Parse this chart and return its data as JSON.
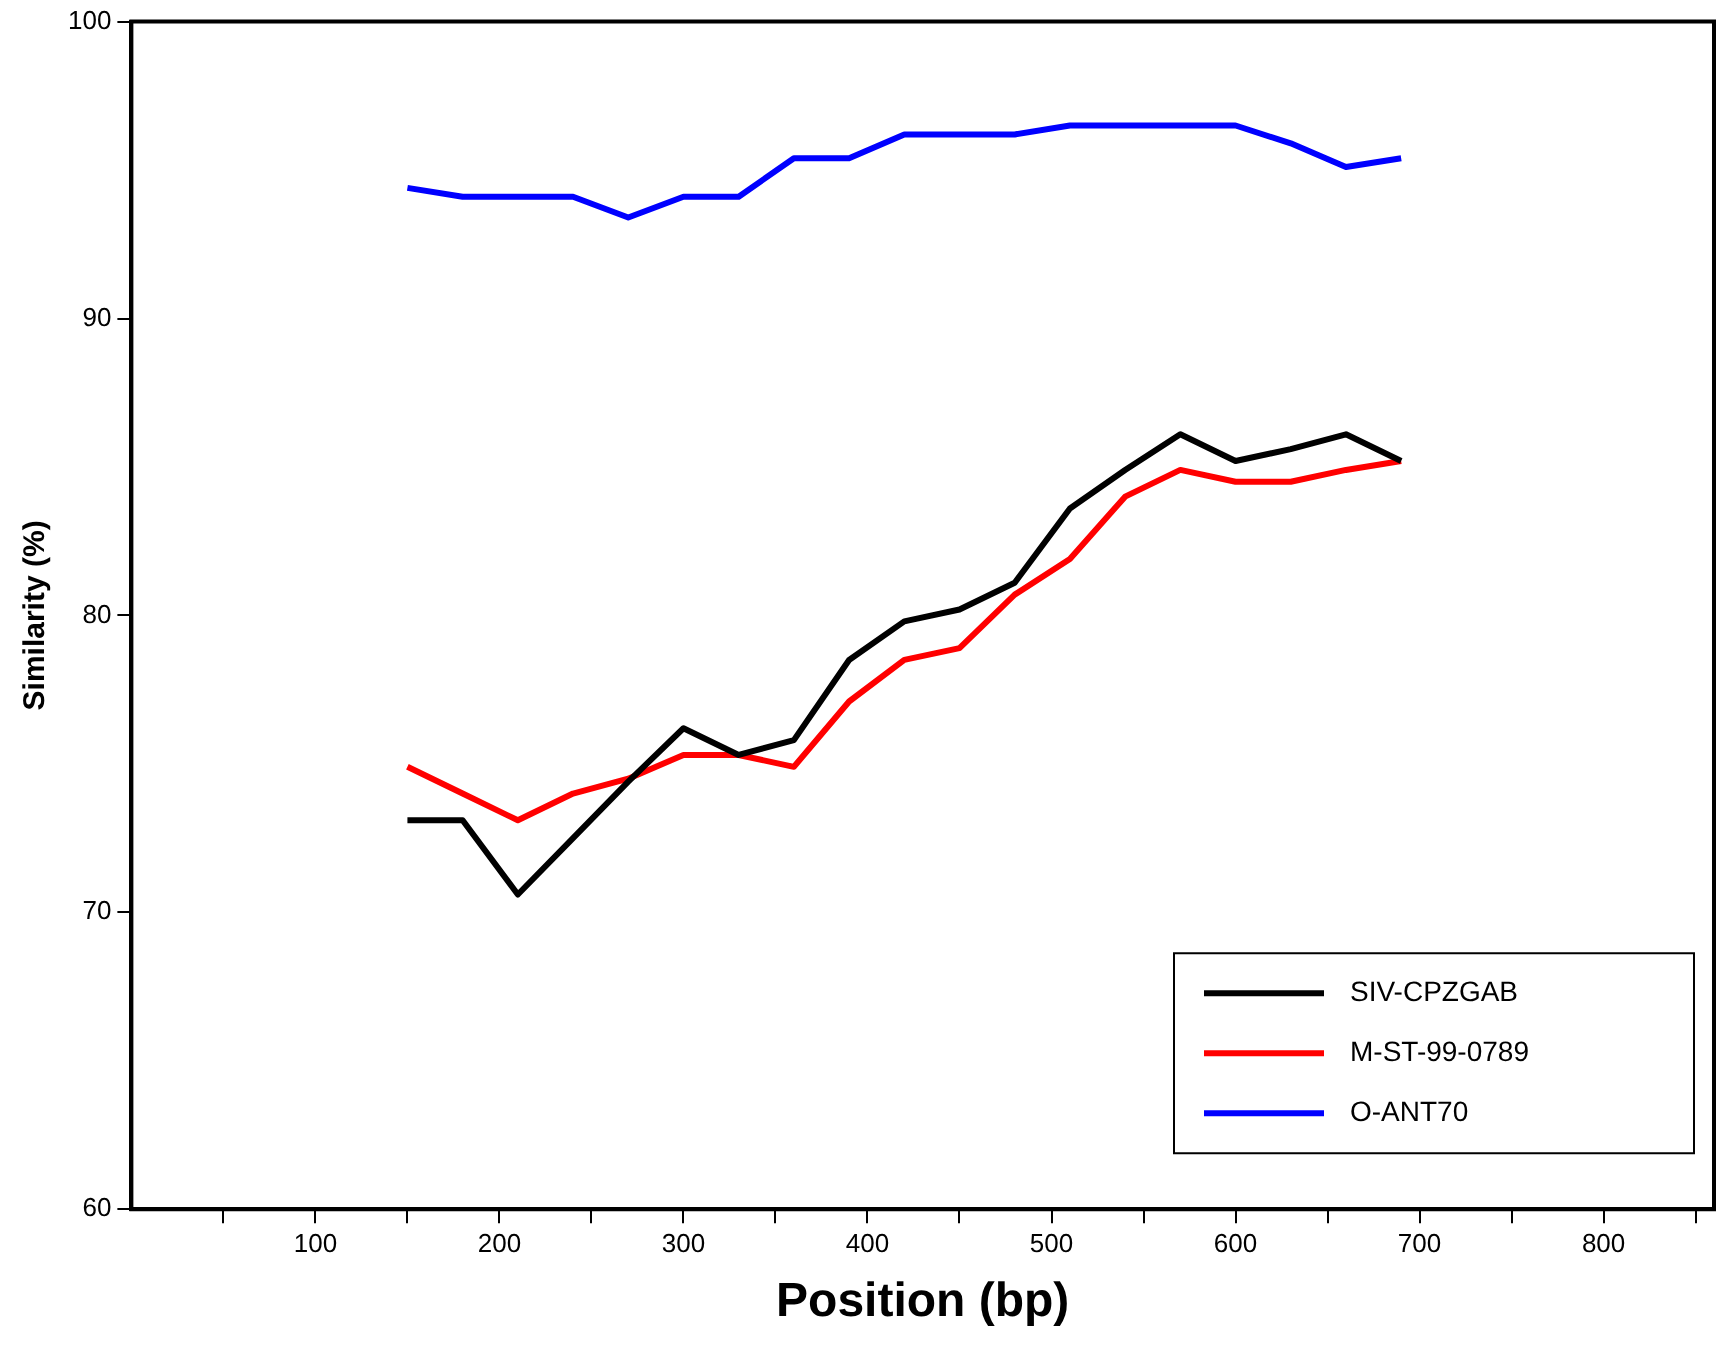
{
  "chart_data": {
    "type": "line",
    "xlabel": "Position (bp)",
    "ylabel": "Similarity (%)",
    "x": [
      150,
      180,
      210,
      240,
      270,
      300,
      330,
      360,
      390,
      420,
      450,
      480,
      510,
      540,
      570,
      600,
      630,
      660,
      690
    ],
    "series": [
      {
        "name": "SIV-CPZGAB",
        "color": "#000000",
        "values": [
          73.1,
          73.1,
          70.6,
          72.5,
          74.4,
          76.2,
          75.3,
          75.8,
          78.5,
          79.8,
          80.2,
          81.1,
          83.6,
          84.9,
          86.1,
          85.2,
          85.6,
          86.1,
          85.2
        ]
      },
      {
        "name": "M-ST-99-0789",
        "color": "#ff0000",
        "values": [
          74.9,
          74.0,
          73.1,
          74.0,
          74.5,
          75.3,
          75.3,
          74.9,
          77.1,
          78.5,
          78.9,
          80.7,
          81.9,
          84.0,
          84.9,
          84.5,
          84.5,
          84.9,
          85.2
        ]
      },
      {
        "name": "O-ANT70",
        "color": "#0000ff",
        "values": [
          94.4,
          94.1,
          94.1,
          94.1,
          93.4,
          94.1,
          94.1,
          95.4,
          95.4,
          96.2,
          96.2,
          96.2,
          96.5,
          96.5,
          96.5,
          96.5,
          95.9,
          95.1,
          95.4
        ]
      }
    ],
    "xlim": [
      0,
      860
    ],
    "xticks": [
      {
        "value": 50,
        "label": null
      },
      100,
      {
        "value": 150,
        "label": null
      },
      200,
      {
        "value": 250,
        "label": null
      },
      300,
      {
        "value": 350,
        "label": null
      },
      400,
      {
        "value": 450,
        "label": null
      },
      500,
      {
        "value": 550,
        "label": null
      },
      600,
      {
        "value": 650,
        "label": null
      },
      700,
      {
        "value": 750,
        "label": null
      },
      800,
      {
        "value": 850,
        "label": null
      }
    ],
    "ylim": [
      60,
      100
    ],
    "yticks": [
      60,
      70,
      80,
      90,
      100
    ],
    "grid": false,
    "legend": "bottom right",
    "marker": "none",
    "line_style": "solid"
  }
}
